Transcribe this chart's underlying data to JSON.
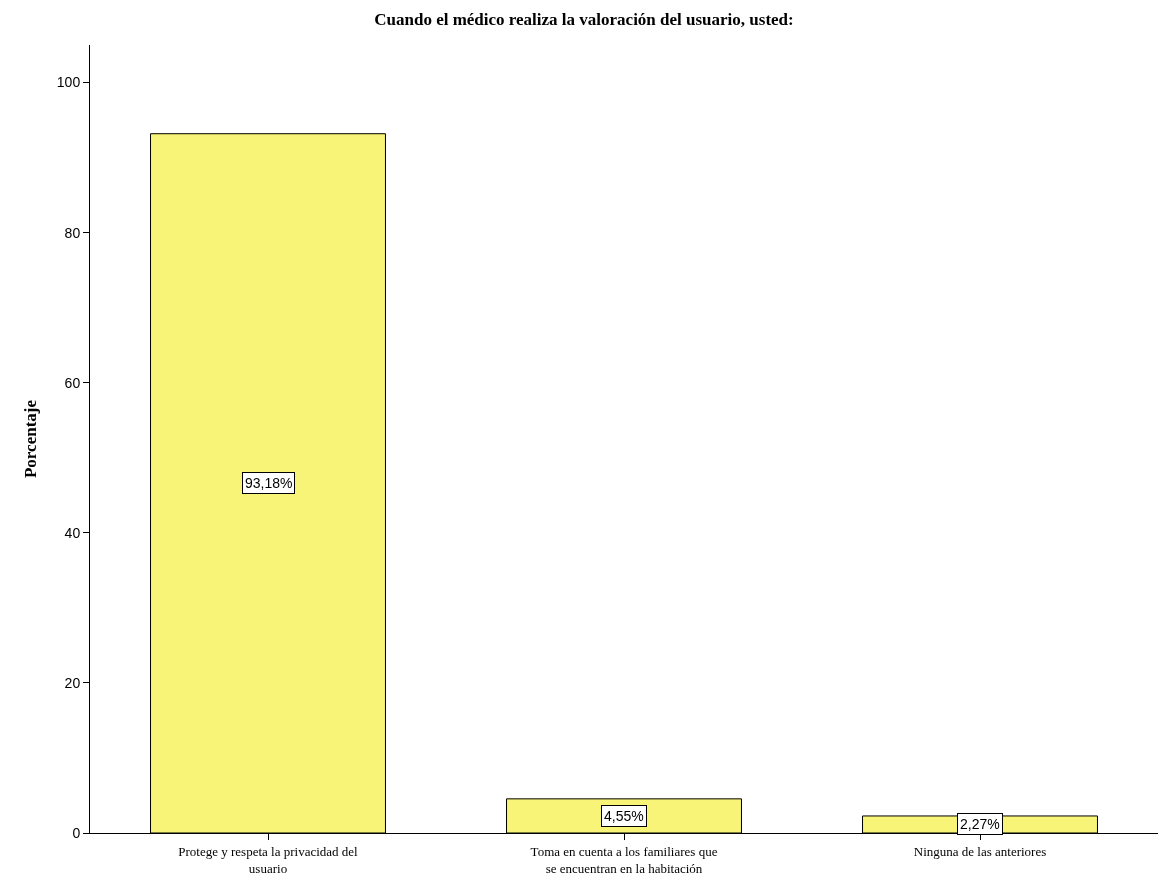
{
  "chart_data": {
    "type": "bar",
    "title": "Cuando el médico realiza la valoración del usuario, usted:",
    "ylabel": "Porcentaje",
    "categories": [
      "Protege y respeta la privacidad del usuario",
      "Toma en cuenta a los familiares que se encuentran en la habitación",
      "Ninguna de las anteriores"
    ],
    "values": [
      93.18,
      4.55,
      2.27
    ],
    "value_labels": [
      "93,18%",
      "4,55%",
      "2,27%"
    ],
    "color": "#f8f477",
    "ylim": [
      0,
      105
    ],
    "yticks": [
      0,
      20,
      40,
      60,
      80,
      100
    ],
    "grid": false,
    "legend": false
  }
}
